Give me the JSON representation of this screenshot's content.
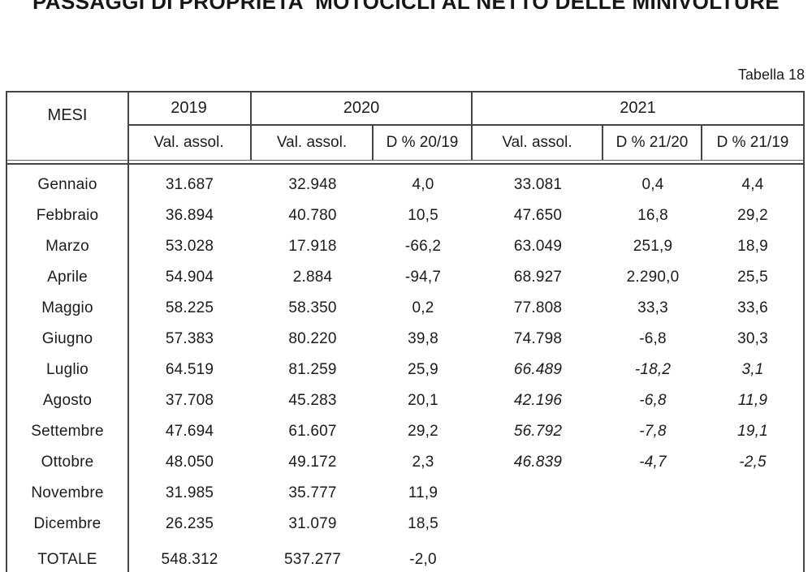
{
  "page": {
    "title": "PASSAGGI DI PROPRIETA' MOTOCICLI AL NETTO DELLE MINIVOLTURE",
    "table_label": "Tabella 18"
  },
  "table": {
    "month_header": "MESI",
    "year_2019": "2019",
    "year_2020": "2020",
    "year_2021": "2021",
    "sub_val_2019": "Val. assol.",
    "sub_val_2020": "Val. assol.",
    "sub_delta_2019": "D % 20/19",
    "sub_val_2021": "Val. assol.",
    "sub_delta_2120": "D % 21/20",
    "sub_delta_2119": "D % 21/19",
    "rows": [
      {
        "month": "Gennaio",
        "v2019": "31.687",
        "v2020": "32.948",
        "d2019": "4,0",
        "v2021": "33.081",
        "d2120": "0,4",
        "d2119": "4,4",
        "italic2021": false,
        "total": false
      },
      {
        "month": "Febbraio",
        "v2019": "36.894",
        "v2020": "40.780",
        "d2019": "10,5",
        "v2021": "47.650",
        "d2120": "16,8",
        "d2119": "29,2",
        "italic2021": false,
        "total": false
      },
      {
        "month": "Marzo",
        "v2019": "53.028",
        "v2020": "17.918",
        "d2019": "-66,2",
        "v2021": "63.049",
        "d2120": "251,9",
        "d2119": "18,9",
        "italic2021": false,
        "total": false
      },
      {
        "month": "Aprile",
        "v2019": "54.904",
        "v2020": "2.884",
        "d2019": "-94,7",
        "v2021": "68.927",
        "d2120": "2.290,0",
        "d2119": "25,5",
        "italic2021": false,
        "total": false
      },
      {
        "month": "Maggio",
        "v2019": "58.225",
        "v2020": "58.350",
        "d2019": "0,2",
        "v2021": "77.808",
        "d2120": "33,3",
        "d2119": "33,6",
        "italic2021": false,
        "total": false
      },
      {
        "month": "Giugno",
        "v2019": "57.383",
        "v2020": "80.220",
        "d2019": "39,8",
        "v2021": "74.798",
        "d2120": "-6,8",
        "d2119": "30,3",
        "italic2021": false,
        "total": false
      },
      {
        "month": "Luglio",
        "v2019": "64.519",
        "v2020": "81.259",
        "d2019": "25,9",
        "v2021": "66.489",
        "d2120": "-18,2",
        "d2119": "3,1",
        "italic2021": true,
        "total": false
      },
      {
        "month": "Agosto",
        "v2019": "37.708",
        "v2020": "45.283",
        "d2019": "20,1",
        "v2021": "42.196",
        "d2120": "-6,8",
        "d2119": "11,9",
        "italic2021": true,
        "total": false
      },
      {
        "month": "Settembre",
        "v2019": "47.694",
        "v2020": "61.607",
        "d2019": "29,2",
        "v2021": "56.792",
        "d2120": "-7,8",
        "d2119": "19,1",
        "italic2021": true,
        "total": false
      },
      {
        "month": "Ottobre",
        "v2019": "48.050",
        "v2020": "49.172",
        "d2019": "2,3",
        "v2021": "46.839",
        "d2120": "-4,7",
        "d2119": "-2,5",
        "italic2021": true,
        "total": false
      },
      {
        "month": "Novembre",
        "v2019": "31.985",
        "v2020": "35.777",
        "d2019": "11,9",
        "v2021": "",
        "d2120": "",
        "d2119": "",
        "italic2021": false,
        "total": false
      },
      {
        "month": "Dicembre",
        "v2019": "26.235",
        "v2020": "31.079",
        "d2019": "18,5",
        "v2021": "",
        "d2120": "",
        "d2119": "",
        "italic2021": false,
        "total": false
      },
      {
        "month": "TOTALE",
        "v2019": "548.312",
        "v2020": "537.277",
        "d2019": "-2,0",
        "v2021": "",
        "d2120": "",
        "d2119": "",
        "italic2021": false,
        "total": true
      }
    ]
  },
  "colors": {
    "border": "#454545",
    "text": "#1b1b1b",
    "background": "#ffffff"
  }
}
